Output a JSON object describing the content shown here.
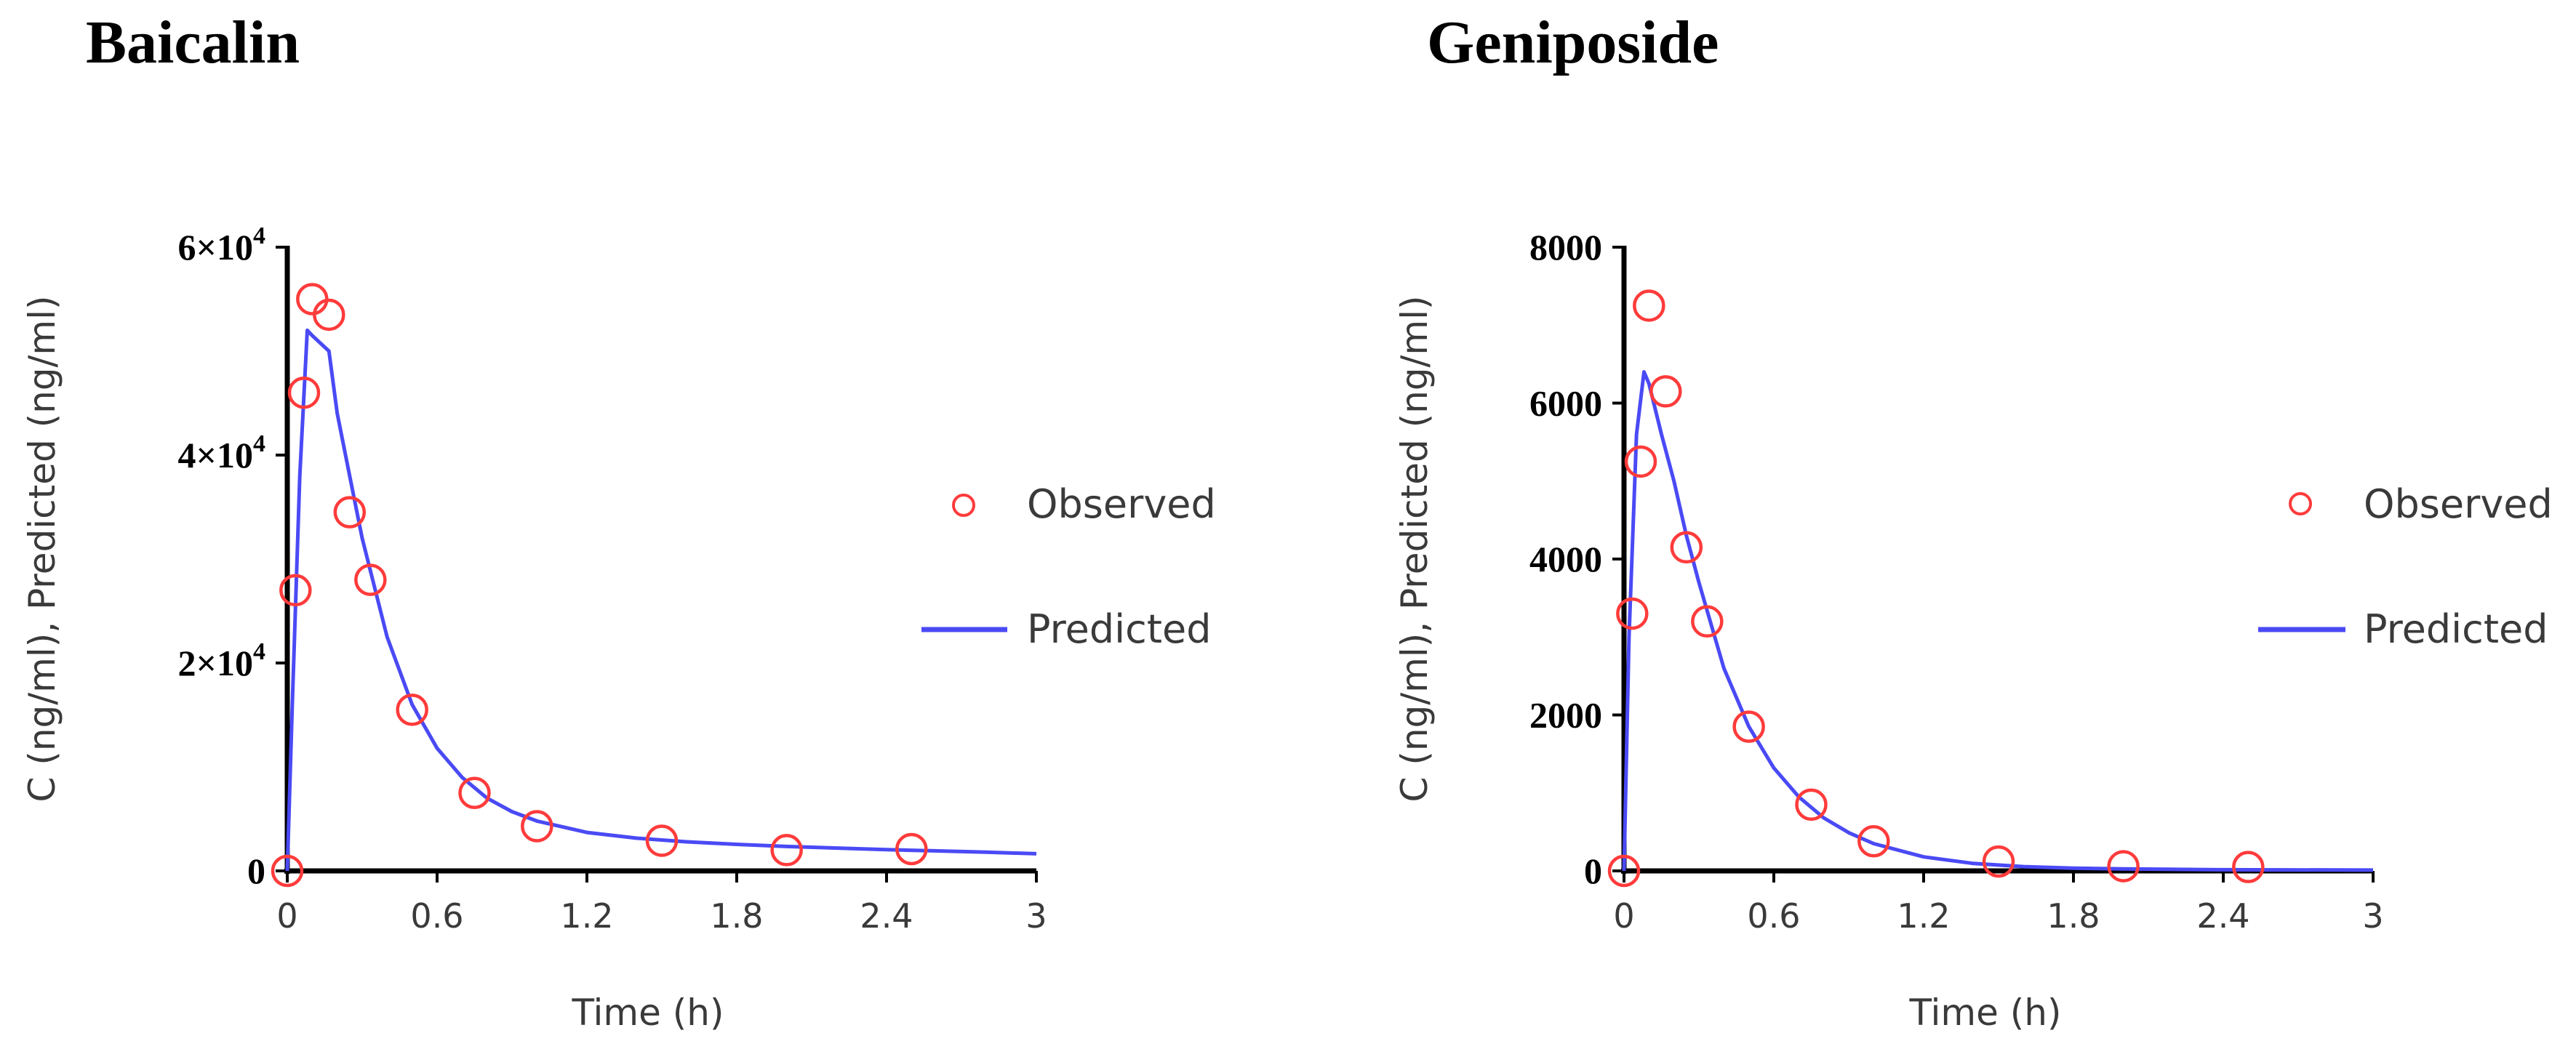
{
  "chart_data": [
    {
      "type": "scatter",
      "title": "Baicalin",
      "xlabel": "Time (h)",
      "ylabel": "C (ng/ml), Predicted (ng/ml)",
      "xlim": [
        0,
        3
      ],
      "ylim": [
        0,
        60000
      ],
      "xticks": [
        0,
        0.6,
        1.2,
        1.8,
        2.4,
        3
      ],
      "xtick_labels": [
        "0",
        "0.6",
        "1.2",
        "1.8",
        "2.4",
        "3"
      ],
      "yticks": [
        0,
        20000,
        40000,
        60000
      ],
      "ytick_labels": [
        {
          "mantissa": "0",
          "exp": ""
        },
        {
          "mantissa": "2×10",
          "exp": "4"
        },
        {
          "mantissa": "4×10",
          "exp": "4"
        },
        {
          "mantissa": "6×10",
          "exp": "4"
        }
      ],
      "legend": {
        "position": "right",
        "entries": [
          "Observed",
          "Predicted"
        ]
      },
      "series": [
        {
          "name": "Observed",
          "style": "open-circle",
          "color": "#ff3b3b",
          "x": [
            0,
            0.033,
            0.067,
            0.1,
            0.167,
            0.25,
            0.333,
            0.5,
            0.75,
            1.0,
            1.5,
            2.0,
            2.5
          ],
          "y": [
            0,
            27000,
            46000,
            55000,
            53500,
            34500,
            28000,
            15500,
            7500,
            4300,
            2900,
            2000,
            2100
          ]
        },
        {
          "name": "Predicted",
          "style": "line",
          "color": "#4a4af5",
          "x": [
            0,
            0.02,
            0.05,
            0.08,
            0.1,
            0.167,
            0.2,
            0.25,
            0.3,
            0.4,
            0.5,
            0.6,
            0.7,
            0.8,
            0.9,
            1.0,
            1.2,
            1.4,
            1.6,
            1.8,
            2.0,
            2.4,
            2.8,
            3.0
          ],
          "y": [
            0,
            16000,
            38000,
            52000,
            51500,
            50000,
            44000,
            38000,
            32000,
            22500,
            16000,
            11800,
            9000,
            7000,
            5700,
            4800,
            3700,
            3150,
            2800,
            2550,
            2350,
            2050,
            1800,
            1650
          ]
        }
      ]
    },
    {
      "type": "scatter",
      "title": "Geniposide",
      "xlabel": "Time (h)",
      "ylabel": "C (ng/ml), Predicted (ng/ml)",
      "xlim": [
        0,
        3
      ],
      "ylim": [
        0,
        8000
      ],
      "xticks": [
        0,
        0.6,
        1.2,
        1.8,
        2.4,
        3
      ],
      "xtick_labels": [
        "0",
        "0.6",
        "1.2",
        "1.8",
        "2.4",
        "3"
      ],
      "yticks": [
        0,
        2000,
        4000,
        6000,
        8000
      ],
      "ytick_labels": [
        {
          "mantissa": "0",
          "exp": ""
        },
        {
          "mantissa": "2000",
          "exp": ""
        },
        {
          "mantissa": "4000",
          "exp": ""
        },
        {
          "mantissa": "6000",
          "exp": ""
        },
        {
          "mantissa": "8000",
          "exp": ""
        }
      ],
      "legend": {
        "position": "right",
        "entries": [
          "Observed",
          "Predicted"
        ]
      },
      "series": [
        {
          "name": "Observed",
          "style": "open-circle",
          "color": "#ff3b3b",
          "x": [
            0,
            0.033,
            0.067,
            0.1,
            0.167,
            0.25,
            0.333,
            0.5,
            0.75,
            1.0,
            1.5,
            2.0,
            2.5
          ],
          "y": [
            0,
            3300,
            5250,
            7250,
            6150,
            4150,
            3200,
            1850,
            850,
            380,
            120,
            60,
            50
          ]
        },
        {
          "name": "Predicted",
          "style": "line",
          "color": "#4a4af5",
          "x": [
            0,
            0.02,
            0.05,
            0.08,
            0.1,
            0.15,
            0.2,
            0.25,
            0.3,
            0.4,
            0.5,
            0.6,
            0.7,
            0.8,
            0.9,
            1.0,
            1.2,
            1.4,
            1.6,
            1.8,
            2.0,
            2.4,
            3.0
          ],
          "y": [
            0,
            3000,
            5600,
            6400,
            6250,
            5600,
            5000,
            4300,
            3700,
            2600,
            1850,
            1320,
            950,
            680,
            490,
            350,
            180,
            95,
            55,
            35,
            25,
            15,
            10
          ]
        }
      ]
    }
  ]
}
